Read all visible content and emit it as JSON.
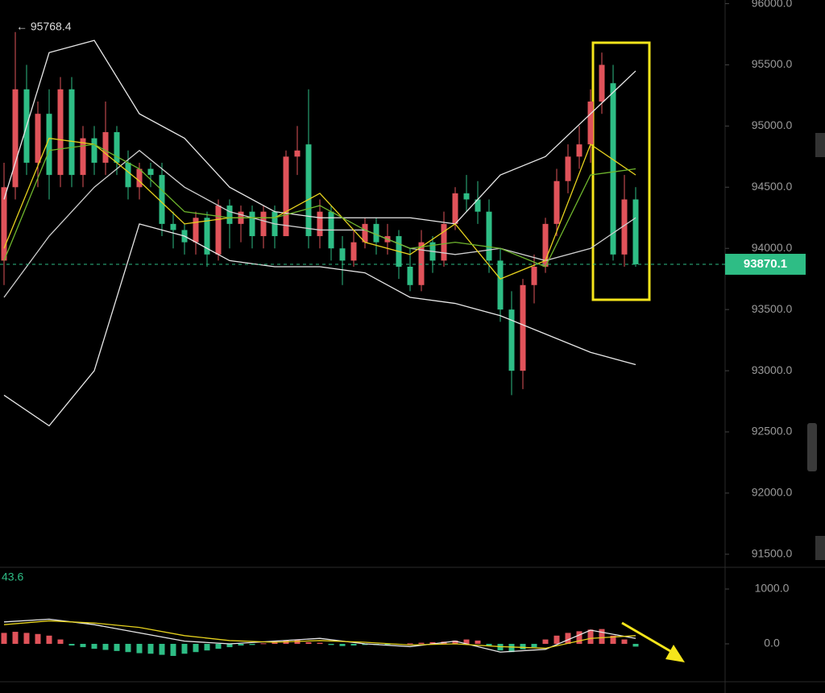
{
  "chart_data": [
    {
      "type": "candlestick",
      "open": [
        93900,
        94500,
        95300,
        94700,
        95100,
        94600,
        95300,
        94600,
        94900,
        94700,
        94950,
        94700,
        94500,
        94650,
        94600,
        94200,
        94150,
        94050,
        94250,
        93950,
        94350,
        94200,
        94300,
        94100,
        94300,
        94100,
        94750,
        94850,
        94100,
        94300,
        94000,
        93900,
        94050,
        94200,
        94050,
        94100,
        93850,
        93700,
        94050,
        93900,
        94200,
        94450,
        94400,
        94300,
        93900,
        93500,
        93000,
        93700,
        93850,
        94200,
        94550,
        94750,
        94850,
        95200,
        95350,
        93950,
        94400
      ],
      "high": [
        94700,
        95768.4,
        95500,
        95200,
        95300,
        95400,
        95400,
        95000,
        95000,
        95200,
        95000,
        94800,
        94700,
        94700,
        94700,
        94300,
        94200,
        94300,
        94300,
        94400,
        94400,
        94350,
        94350,
        94350,
        94350,
        94800,
        95000,
        95300,
        94400,
        94350,
        94100,
        94150,
        94250,
        94250,
        94200,
        94150,
        94000,
        94150,
        94100,
        94300,
        94500,
        94600,
        94550,
        94400,
        94000,
        93650,
        93750,
        93950,
        94250,
        94650,
        94850,
        95000,
        95300,
        95600,
        95500,
        94600,
        94500
      ],
      "low": [
        93700,
        94400,
        94600,
        94500,
        94400,
        94500,
        94500,
        94500,
        94600,
        94600,
        94600,
        94400,
        94400,
        94500,
        94100,
        94000,
        93950,
        93950,
        93850,
        93900,
        94000,
        94050,
        94000,
        94000,
        94000,
        94100,
        94600,
        94000,
        94000,
        93900,
        93700,
        93850,
        94000,
        93950,
        93950,
        93750,
        93650,
        93650,
        93800,
        93850,
        94150,
        94300,
        94200,
        93800,
        93400,
        92800,
        92850,
        93550,
        93800,
        94100,
        94450,
        94650,
        94700,
        95100,
        93900,
        93850,
        93850
      ],
      "close": [
        94500,
        95300,
        94700,
        95100,
        94600,
        95300,
        94600,
        94900,
        94700,
        94950,
        94700,
        94500,
        94650,
        94600,
        94200,
        94150,
        94050,
        94250,
        93950,
        94350,
        94200,
        94300,
        94100,
        94300,
        94100,
        94750,
        94800,
        94100,
        94300,
        94000,
        93900,
        94050,
        94200,
        94050,
        94100,
        93850,
        93700,
        94050,
        93900,
        94200,
        94450,
        94400,
        94300,
        93900,
        93500,
        93000,
        93700,
        93850,
        94200,
        94550,
        94750,
        94850,
        95200,
        95500,
        93950,
        94400,
        93870.1
      ],
      "up_color": "#e0535a",
      "down_color": "#2ebd85",
      "lines": [
        {
          "color": "#e8e8e8",
          "x": [
            0,
            4,
            8,
            12,
            16,
            20,
            24,
            28,
            32,
            36,
            40,
            44,
            48,
            52,
            56
          ],
          "values": [
            94400,
            95600,
            95700,
            95100,
            94900,
            94500,
            94300,
            94250,
            94250,
            94250,
            94200,
            94600,
            94750,
            95100,
            95450
          ]
        },
        {
          "color": "#e8e8e8",
          "x": [
            0,
            4,
            8,
            12,
            16,
            20,
            24,
            28,
            32,
            36,
            40,
            44,
            48,
            52,
            56
          ],
          "values": [
            92800,
            92550,
            93000,
            94200,
            94100,
            93900,
            93850,
            93850,
            93800,
            93600,
            93550,
            93450,
            93300,
            93150,
            93050
          ]
        },
        {
          "color": "#cfcfcf",
          "x": [
            0,
            4,
            8,
            12,
            16,
            20,
            24,
            28,
            32,
            36,
            40,
            44,
            48,
            52,
            56
          ],
          "values": [
            93600,
            94100,
            94500,
            94800,
            94500,
            94300,
            94200,
            94150,
            94150,
            94000,
            93950,
            94000,
            93900,
            94000,
            94250
          ]
        },
        {
          "color": "#e6d21e",
          "x": [
            0,
            4,
            8,
            12,
            16,
            20,
            24,
            28,
            32,
            36,
            40,
            44,
            48,
            52,
            56
          ],
          "values": [
            94000,
            94900,
            94850,
            94550,
            94200,
            94250,
            94250,
            94450,
            94050,
            93950,
            94200,
            93750,
            93900,
            94850,
            94600
          ]
        },
        {
          "color": "#6fb62d",
          "x": [
            0,
            4,
            8,
            12,
            16,
            20,
            24,
            28,
            32,
            36,
            40,
            44,
            48,
            52,
            56
          ],
          "values": [
            93900,
            94800,
            94850,
            94650,
            94300,
            94250,
            94250,
            94350,
            94150,
            94000,
            94050,
            94000,
            93850,
            94600,
            94650
          ]
        }
      ],
      "ylim": [
        91400,
        96030
      ],
      "yticks": [
        {
          "value": 91500,
          "label": "91500.0"
        },
        {
          "value": 92000,
          "label": "92000.0"
        },
        {
          "value": 92500,
          "label": "92500.0"
        },
        {
          "value": 93000,
          "label": "93000.0"
        },
        {
          "value": 93500,
          "label": "93500.0"
        },
        {
          "value": 94000,
          "label": "94000.0"
        },
        {
          "value": 94500,
          "label": "94500.0"
        },
        {
          "value": 95000,
          "label": "95000.0"
        },
        {
          "value": 95500,
          "label": "95500.0"
        },
        {
          "value": 96000,
          "label": "96000.0"
        }
      ],
      "last_price": 93870.1,
      "high_annotation": "← 95768.4"
    },
    {
      "type": "macd",
      "values": [
        200,
        220,
        200,
        180,
        150,
        80,
        -30,
        -60,
        -90,
        -110,
        -130,
        -150,
        -170,
        -180,
        -200,
        -220,
        -180,
        -150,
        -120,
        -90,
        -60,
        -30,
        -20,
        10,
        40,
        60,
        80,
        30,
        20,
        -20,
        -40,
        -30,
        -20,
        -20,
        -10,
        -10,
        10,
        20,
        30,
        40,
        60,
        80,
        60,
        -30,
        -120,
        -150,
        -100,
        -60,
        80,
        150,
        200,
        230,
        260,
        270,
        150,
        80,
        -50
      ],
      "up_color": "#e0535a",
      "down_color": "#2ebd85",
      "lines": [
        {
          "color": "#e8e8e8",
          "x": [
            0,
            4,
            8,
            12,
            16,
            20,
            24,
            28,
            32,
            36,
            40,
            44,
            48,
            52,
            56
          ],
          "values": [
            400,
            450,
            350,
            200,
            50,
            0,
            50,
            100,
            0,
            -50,
            50,
            -150,
            -100,
            250,
            100
          ]
        },
        {
          "color": "#e6d21e",
          "x": [
            0,
            4,
            8,
            12,
            16,
            20,
            24,
            28,
            32,
            36,
            40,
            44,
            48,
            52,
            56
          ],
          "values": [
            350,
            420,
            380,
            300,
            150,
            60,
            30,
            60,
            30,
            -20,
            0,
            -50,
            -80,
            100,
            150
          ]
        }
      ],
      "ylim": [
        -676,
        1382
      ],
      "yticks": [
        {
          "value": 0,
          "label": "0.0"
        },
        {
          "value": 1000,
          "label": "1000.0"
        }
      ],
      "label": 43.6
    }
  ]
}
